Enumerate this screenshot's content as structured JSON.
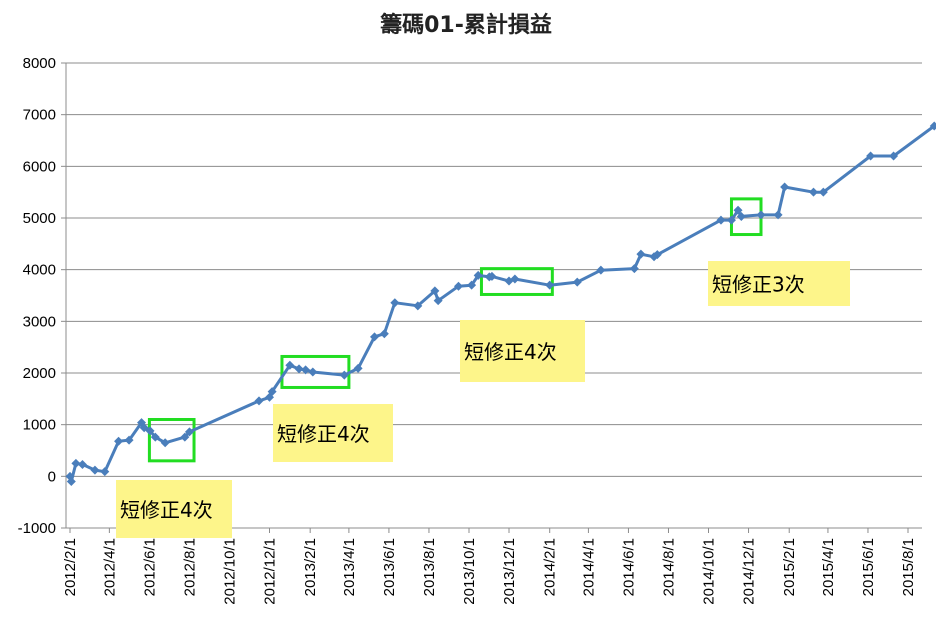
{
  "chart_data": {
    "type": "line",
    "title": "籌碼01-累計損益",
    "xlabel": "",
    "ylabel": "",
    "ylim": [
      -1000,
      8000
    ],
    "yticks": [
      "8000",
      "7000",
      "6000",
      "5000",
      "4000",
      "3000",
      "2000",
      "1000",
      "0",
      "-1000"
    ],
    "xticks": [
      "2012/2/1",
      "2012/4/1",
      "2012/6/1",
      "2012/8/1",
      "2012/10/1",
      "2012/12/1",
      "2013/2/1",
      "2013/4/1",
      "2013/6/1",
      "2013/8/1",
      "2013/10/1",
      "2013/12/1",
      "2014/2/1",
      "2014/4/1",
      "2014/6/1",
      "2014/8/1",
      "2014/10/1",
      "2014/12/1",
      "2015/2/1",
      "2015/4/1",
      "2015/6/1",
      "2015/8/1"
    ],
    "grid": true,
    "legend": "none",
    "line_color": "#4a7ebb",
    "annotation_box_color": "#22dd22",
    "annotation_label_bg": "#fdf58a",
    "series": [
      {
        "x": [
          "2012/2/1",
          "2012/2/3",
          "2012/2/10",
          "2012/2/20",
          "2012/3/10",
          "2012/3/25",
          "2012/4/15",
          "2012/5/1",
          "2012/5/20",
          "2012/5/24",
          "2012/6/2",
          "2012/6/10",
          "2012/6/25",
          "2012/7/25",
          "2012/8/1",
          "2012/11/15",
          "2012/12/1",
          "2012/12/5",
          "2013/1/1",
          "2013/1/15",
          "2013/1/25",
          "2013/2/5",
          "2013/3/25",
          "2013/4/15",
          "2013/5/10",
          "2013/5/25",
          "2013/6/10",
          "2013/7/15",
          "2013/8/10",
          "2013/8/15",
          "2013/9/15",
          "2013/10/5",
          "2013/10/15",
          "2013/11/1",
          "2013/11/5",
          "2013/12/1",
          "2013/12/10",
          "2014/2/1",
          "2014/3/15",
          "2014/4/20",
          "2014/6/10",
          "2014/6/20",
          "2014/7/10",
          "2014/7/15",
          "2014/10/20",
          "2014/11/5",
          "2014/11/15",
          "2014/11/20",
          "2014/12/20",
          "2015/1/15",
          "2015/1/25",
          "2015/3/10",
          "2015/3/25",
          "2015/6/5",
          "2015/7/10",
          "2015/9/10"
        ],
        "values": [
          0,
          -100,
          250,
          230,
          120,
          90,
          680,
          700,
          1040,
          940,
          880,
          760,
          650,
          760,
          860,
          1460,
          1530,
          1640,
          2150,
          2080,
          2060,
          2020,
          1960,
          2090,
          2700,
          2760,
          3360,
          3300,
          3590,
          3400,
          3680,
          3700,
          3890,
          3860,
          3870,
          3780,
          3820,
          3700,
          3760,
          3990,
          4020,
          4300,
          4250,
          4290,
          4960,
          4960,
          5150,
          5030,
          5060,
          5060,
          5600,
          5500,
          5500,
          6200,
          6200,
          6780
        ]
      }
    ],
    "annotations": [
      {
        "label": "短修正4次",
        "box_x": [
          "2012/6/1",
          "2012/8/8"
        ],
        "box_y": [
          300,
          1100
        ]
      },
      {
        "label": "短修正4次",
        "box_x": [
          "2012/12/20",
          "2013/4/1"
        ],
        "box_y": [
          1720,
          2320
        ]
      },
      {
        "label": "短修正4次",
        "box_x": [
          "2013/10/20",
          "2014/2/5"
        ],
        "box_y": [
          3520,
          4020
        ]
      },
      {
        "label": "短修正3次",
        "box_x": [
          "2014/11/5",
          "2014/12/20"
        ],
        "box_y": [
          4680,
          5370
        ]
      }
    ]
  }
}
